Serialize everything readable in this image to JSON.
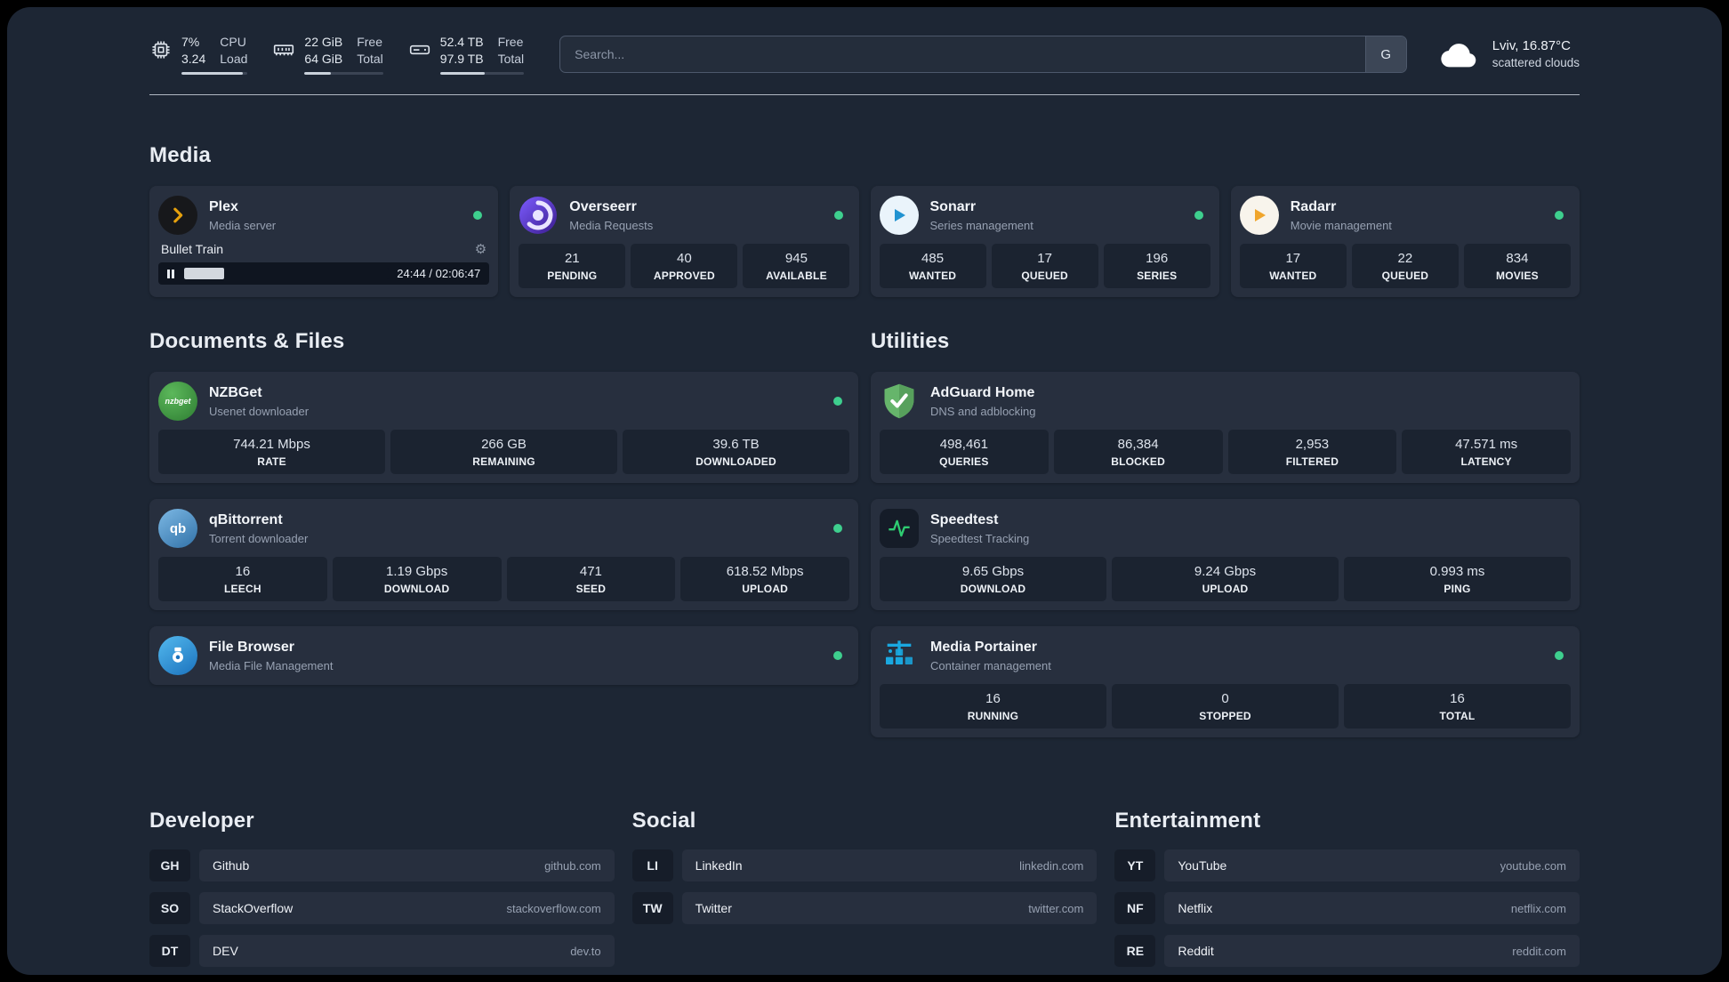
{
  "topbar": {
    "cpu": {
      "percent": "7%",
      "load": "3.24",
      "label_top": "CPU",
      "label_bottom": "Load",
      "bar": "93%"
    },
    "ram": {
      "free": "22 GiB",
      "total": "64 GiB",
      "label_top": "Free",
      "label_bottom": "Total",
      "bar": "34%"
    },
    "disk": {
      "free": "52.4 TB",
      "total": "97.9 TB",
      "label_top": "Free",
      "label_bottom": "Total",
      "bar": "53%"
    },
    "search": {
      "placeholder": "Search...",
      "provider": "G"
    },
    "weather": {
      "location": "Lviv, 16.87°C",
      "condition": "scattered clouds"
    }
  },
  "media": {
    "title": "Media",
    "plex": {
      "name": "Plex",
      "desc": "Media server",
      "now_playing": "Bullet Train",
      "time": "24:44 / 02:06:47",
      "progress": "19.5%"
    },
    "overseerr": {
      "name": "Overseerr",
      "desc": "Media Requests",
      "stats": [
        {
          "value": "21",
          "label": "PENDING"
        },
        {
          "value": "40",
          "label": "APPROVED"
        },
        {
          "value": "945",
          "label": "AVAILABLE"
        }
      ]
    },
    "sonarr": {
      "name": "Sonarr",
      "desc": "Series management",
      "stats": [
        {
          "value": "485",
          "label": "WANTED"
        },
        {
          "value": "17",
          "label": "QUEUED"
        },
        {
          "value": "196",
          "label": "SERIES"
        }
      ]
    },
    "radarr": {
      "name": "Radarr",
      "desc": "Movie management",
      "stats": [
        {
          "value": "17",
          "label": "WANTED"
        },
        {
          "value": "22",
          "label": "QUEUED"
        },
        {
          "value": "834",
          "label": "MOVIES"
        }
      ]
    }
  },
  "documents": {
    "title": "Documents & Files",
    "nzbget": {
      "name": "NZBGet",
      "desc": "Usenet downloader",
      "stats": [
        {
          "value": "744.21 Mbps",
          "label": "RATE"
        },
        {
          "value": "266 GB",
          "label": "REMAINING"
        },
        {
          "value": "39.6 TB",
          "label": "DOWNLOADED"
        }
      ]
    },
    "qbittorrent": {
      "name": "qBittorrent",
      "desc": "Torrent downloader",
      "stats": [
        {
          "value": "16",
          "label": "LEECH"
        },
        {
          "value": "1.19 Gbps",
          "label": "DOWNLOAD"
        },
        {
          "value": "471",
          "label": "SEED"
        },
        {
          "value": "618.52 Mbps",
          "label": "UPLOAD"
        }
      ]
    },
    "filebrowser": {
      "name": "File Browser",
      "desc": "Media File Management"
    }
  },
  "utilities": {
    "title": "Utilities",
    "adguard": {
      "name": "AdGuard Home",
      "desc": "DNS and adblocking",
      "stats": [
        {
          "value": "498,461",
          "label": "QUERIES"
        },
        {
          "value": "86,384",
          "label": "BLOCKED"
        },
        {
          "value": "2,953",
          "label": "FILTERED"
        },
        {
          "value": "47.571 ms",
          "label": "LATENCY"
        }
      ]
    },
    "speedtest": {
      "name": "Speedtest",
      "desc": "Speedtest Tracking",
      "stats": [
        {
          "value": "9.65 Gbps",
          "label": "DOWNLOAD"
        },
        {
          "value": "9.24 Gbps",
          "label": "UPLOAD"
        },
        {
          "value": "0.993 ms",
          "label": "PING"
        }
      ]
    },
    "portainer": {
      "name": "Media Portainer",
      "desc": "Container management",
      "stats": [
        {
          "value": "16",
          "label": "RUNNING"
        },
        {
          "value": "0",
          "label": "STOPPED"
        },
        {
          "value": "16",
          "label": "TOTAL"
        }
      ]
    }
  },
  "bookmarks": {
    "developer": {
      "title": "Developer",
      "items": [
        {
          "abbr": "GH",
          "name": "Github",
          "domain": "github.com"
        },
        {
          "abbr": "SO",
          "name": "StackOverflow",
          "domain": "stackoverflow.com"
        },
        {
          "abbr": "DT",
          "name": "DEV",
          "domain": "dev.to"
        }
      ]
    },
    "social": {
      "title": "Social",
      "items": [
        {
          "abbr": "LI",
          "name": "LinkedIn",
          "domain": "linkedin.com"
        },
        {
          "abbr": "TW",
          "name": "Twitter",
          "domain": "twitter.com"
        }
      ]
    },
    "entertainment": {
      "title": "Entertainment",
      "items": [
        {
          "abbr": "YT",
          "name": "YouTube",
          "domain": "youtube.com"
        },
        {
          "abbr": "NF",
          "name": "Netflix",
          "domain": "netflix.com"
        },
        {
          "abbr": "RE",
          "name": "Reddit",
          "domain": "reddit.com"
        }
      ]
    }
  },
  "icons": {
    "gear": "⚙",
    "qbittorrent_label": "qb",
    "nzbget_label": "nzbget"
  },
  "colors": {
    "status_online": "#3ecf8e",
    "plex_amber": "#e5a00d",
    "sonarr_blue": "#2193d1",
    "radarr_gold": "#f0a52c",
    "adguard_green": "#66b56b",
    "speedtest_green": "#2ecc71",
    "portainer_blue": "#1aa8e0",
    "background": "#1d2634",
    "card": "#272f3e"
  }
}
